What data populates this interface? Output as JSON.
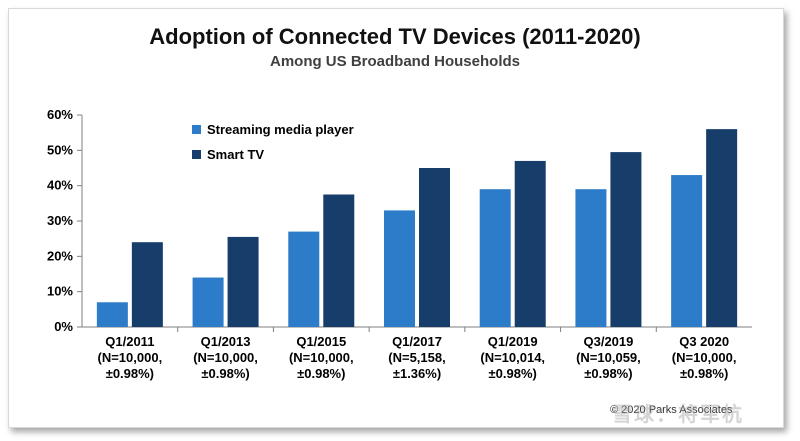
{
  "chart_data": {
    "type": "bar",
    "title": "Adoption of Connected TV Devices (2011-2020)",
    "subtitle": "Among US Broadband Households",
    "xlabel": "",
    "ylabel": "",
    "ylim": [
      0,
      60
    ],
    "yticks": [
      "0%",
      "10%",
      "20%",
      "30%",
      "40%",
      "50%",
      "60%"
    ],
    "legend_position": "top-left",
    "categories": [
      [
        "Q1/2011",
        "(N=10,000,",
        "±0.98%)"
      ],
      [
        "Q1/2013",
        "(N=10,000,",
        "±0.98%)"
      ],
      [
        "Q1/2015",
        "(N=10,000,",
        "±0.98%)"
      ],
      [
        "Q1/2017",
        "(N=5,158,",
        "±1.36%)"
      ],
      [
        "Q1/2019",
        "(N=10,014,",
        "±0.98%)"
      ],
      [
        "Q3/2019",
        "(N=10,059,",
        "±0.98%)"
      ],
      [
        "Q3 2020",
        "(N=10,000,",
        "±0.98%)"
      ]
    ],
    "series": [
      {
        "name": "Streaming media player",
        "color": "#2d7cc9",
        "values": [
          7,
          14,
          27,
          33,
          39,
          39,
          43
        ]
      },
      {
        "name": "Smart TV",
        "color": "#173d6b",
        "values": [
          24,
          25.5,
          37.5,
          45,
          47,
          49.5,
          56
        ]
      }
    ]
  },
  "footer": {
    "source": "© 2020 Parks Associates",
    "watermark": "雪球：将军杭"
  }
}
